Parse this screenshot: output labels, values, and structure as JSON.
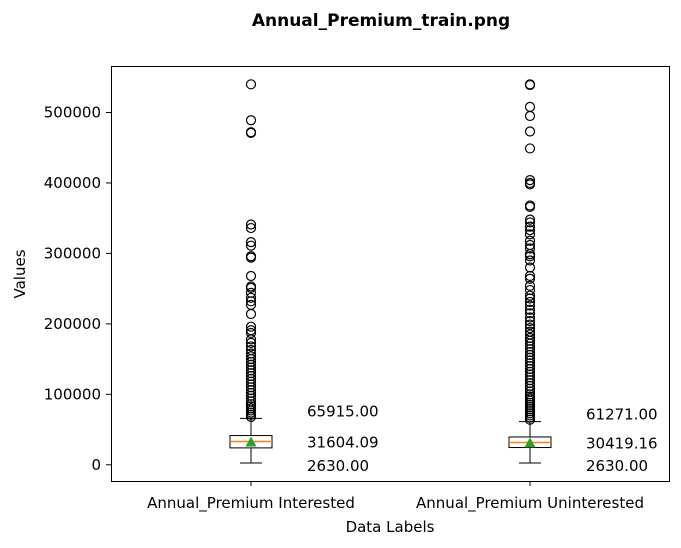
{
  "chart_data": {
    "type": "box",
    "title": "Annual_Premium_train.png",
    "xlabel": "Data Labels",
    "ylabel": "Values",
    "ylim": [
      -23000,
      566000
    ],
    "yticks": [
      0,
      100000,
      200000,
      300000,
      400000,
      500000
    ],
    "ytick_labels": [
      "0",
      "100000",
      "200000",
      "300000",
      "400000",
      "500000"
    ],
    "grid": false,
    "boxes": [
      {
        "label": "Annual_Premium Interested",
        "whisker_low": 2630,
        "q1": 24000,
        "median": 33000,
        "mean": 31604.09,
        "q3": 41500,
        "whisker_high": 65915,
        "annotations": [
          "65915.00",
          "31604.09",
          "2630.00"
        ],
        "outliers": [
          540000,
          489000,
          472000,
          471000,
          341000,
          336000,
          316000,
          311000,
          296000,
          294000,
          268000,
          253000,
          251000,
          244000,
          237000,
          232000,
          227000,
          214000,
          196000,
          191000,
          187000,
          178000,
          173000,
          168000,
          163000,
          158000,
          154000,
          150000,
          146000,
          142000,
          138000,
          134000,
          130000,
          126000,
          122000,
          118000,
          114000,
          110000,
          106000,
          102000,
          98000,
          94000,
          90000,
          86000,
          83000,
          80000,
          77000,
          74000,
          71000,
          68000
        ]
      },
      {
        "label": "Annual_Premium Uninterested",
        "whisker_low": 2630,
        "q1": 24500,
        "median": 31700,
        "mean": 30419.16,
        "q3": 39500,
        "whisker_high": 61271,
        "annotations": [
          "61271.00",
          "30419.16",
          "2630.00"
        ],
        "outliers": [
          540000,
          539000,
          508000,
          495000,
          473000,
          449000,
          404000,
          400000,
          398000,
          368000,
          366000,
          348000,
          344000,
          338000,
          333000,
          327000,
          318000,
          312000,
          307000,
          299000,
          296000,
          290000,
          280000,
          268000,
          264000,
          254000,
          248000,
          240000,
          236000,
          231000,
          226000,
          220000,
          215000,
          209000,
          204000,
          199000,
          194000,
          189000,
          185000,
          180000,
          176000,
          172000,
          168000,
          164000,
          160000,
          156000,
          152000,
          148000,
          144000,
          140000,
          136000,
          132000,
          128000,
          124000,
          120000,
          116000,
          112000,
          108000,
          104000,
          100000,
          97000,
          94000,
          91000,
          88000,
          85000,
          82000,
          79000,
          76000,
          73000,
          70000,
          67000,
          64000
        ]
      }
    ]
  }
}
